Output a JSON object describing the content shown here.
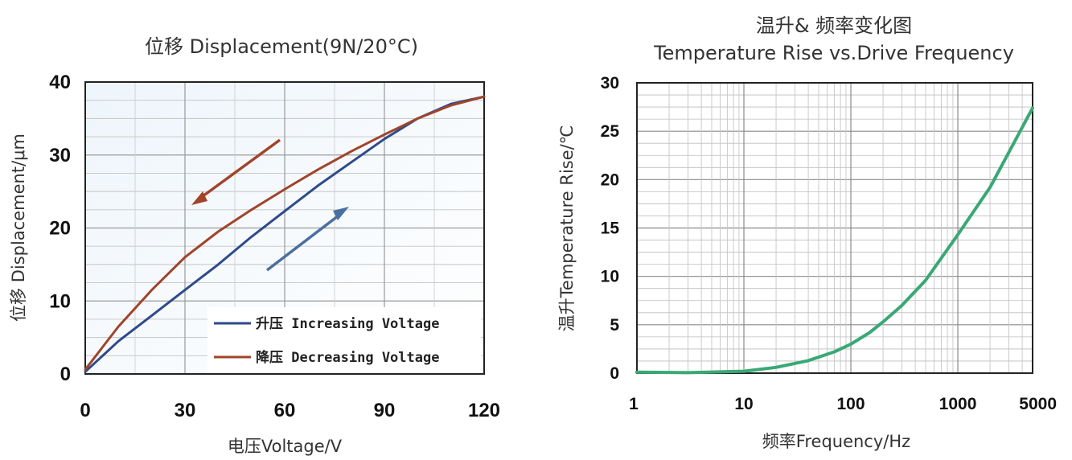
{
  "chart_data": [
    {
      "type": "line",
      "title": "位移 Displacement(9N/20°C)",
      "xlabel": "电压Voltage/V",
      "ylabel": "位移 Displacement/μm",
      "xlim": [
        0,
        120
      ],
      "ylim": [
        0,
        40
      ],
      "x_ticks": [
        "0",
        "30",
        "60",
        "90",
        "120"
      ],
      "y_ticks": [
        "0",
        "10",
        "20",
        "30",
        "40"
      ],
      "grid": true,
      "legend_position": "bottom-right",
      "series": [
        {
          "name": "升压 Increasing Voltage",
          "color": "#2e4a8b",
          "x": [
            0,
            10,
            20,
            30,
            40,
            50,
            60,
            70,
            80,
            90,
            100,
            110,
            120
          ],
          "y": [
            0.3,
            4.5,
            8.0,
            11.5,
            15.0,
            18.8,
            22.3,
            25.8,
            29.0,
            32.2,
            35.0,
            37.0,
            38.0
          ]
        },
        {
          "name": "降压 Decreasing Voltage",
          "color": "#a0442a",
          "x": [
            0,
            10,
            20,
            30,
            40,
            50,
            60,
            70,
            80,
            90,
            100,
            110,
            120
          ],
          "y": [
            0.6,
            6.5,
            11.5,
            16.0,
            19.5,
            22.5,
            25.3,
            28.0,
            30.5,
            32.8,
            35.0,
            36.8,
            38.0
          ]
        }
      ],
      "annotations": [
        {
          "type": "arrow",
          "direction": "down-left",
          "color": "#a0442a"
        },
        {
          "type": "arrow",
          "direction": "up-right",
          "color": "#4a6fa0"
        }
      ]
    },
    {
      "type": "line",
      "title": "温升& 频率变化图",
      "subtitle": "Temperature Rise vs.Drive Frequency",
      "xlabel": "频率Frequency/Hz",
      "ylabel": "温升Temperature Rise/℃",
      "x_scale": "log",
      "xlim": [
        1,
        5000
      ],
      "ylim": [
        0,
        30
      ],
      "x_ticks": [
        {
          "label": "1",
          "value": 1
        },
        {
          "label": "10",
          "value": 10
        },
        {
          "label": "100",
          "value": 100
        },
        {
          "label": "1000",
          "value": 1000
        },
        {
          "label": "5000",
          "value": 5000
        }
      ],
      "y_ticks": [
        "0",
        "5",
        "10",
        "15",
        "20",
        "25",
        "30"
      ],
      "grid": true,
      "series": [
        {
          "color": "#3aa876",
          "x": [
            1,
            3,
            10,
            20,
            40,
            70,
            100,
            150,
            200,
            300,
            500,
            1000,
            2000,
            5000
          ],
          "y": [
            0.1,
            0.05,
            0.2,
            0.6,
            1.3,
            2.2,
            3.0,
            4.2,
            5.3,
            7.0,
            9.6,
            14.3,
            19.2,
            27.4
          ]
        }
      ]
    }
  ]
}
